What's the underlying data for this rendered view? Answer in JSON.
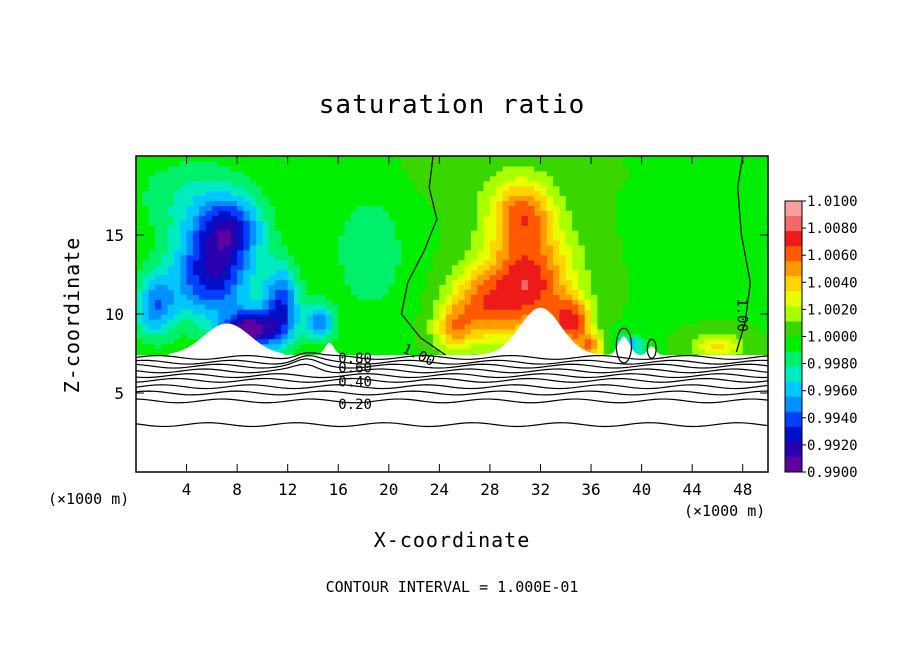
{
  "chart_data": {
    "type": "heatmap",
    "title": "saturation ratio",
    "xlabel": "X-coordinate",
    "ylabel": "Z-coordinate",
    "x_unit_label_left": "(×1000 m)",
    "x_unit_label_right": "(×1000 m)",
    "footer": "CONTOUR INTERVAL = 1.000E-01",
    "xlim": [
      0,
      50
    ],
    "ylim": [
      0,
      20
    ],
    "x_ticks": [
      "4",
      "8",
      "12",
      "16",
      "20",
      "24",
      "28",
      "32",
      "36",
      "40",
      "44",
      "48"
    ],
    "x_tick_values": [
      4,
      8,
      12,
      16,
      20,
      24,
      28,
      32,
      36,
      40,
      44,
      48
    ],
    "y_ticks": [
      "5",
      "10",
      "15"
    ],
    "y_tick_values": [
      5,
      10,
      15
    ],
    "colorbar": {
      "min": 0.99,
      "max": 1.01,
      "labels": [
        "1.0100",
        "1.0080",
        "1.0060",
        "1.0040",
        "1.0020",
        "1.0000",
        "0.9980",
        "0.9960",
        "0.9940",
        "0.9920",
        "0.9900"
      ],
      "colors": [
        "#f7a0a0",
        "#f06a6a",
        "#ee1a1a",
        "#ff5a00",
        "#ff9a00",
        "#ffd400",
        "#e8ff00",
        "#a8ff00",
        "#3ad600",
        "#00ee00",
        "#00f06a",
        "#00ecc0",
        "#00c8ff",
        "#0090ff",
        "#0040ff",
        "#0010c8",
        "#2800b0",
        "#6000a0"
      ]
    },
    "contour_labels": [
      "0.80",
      "0.60",
      "0.40",
      "0.20",
      "1.00",
      "1.00"
    ],
    "blobs": [
      {
        "x": 6,
        "z": 12.6,
        "sx": 3.2,
        "sz": 3.0,
        "v": 0.9925
      },
      {
        "x": 7.5,
        "z": 15.5,
        "sx": 2.5,
        "sz": 2.0,
        "v": 0.9945
      },
      {
        "x": 1.5,
        "z": 10.5,
        "sx": 1.6,
        "sz": 2.0,
        "v": 0.995
      },
      {
        "x": 11.5,
        "z": 10.5,
        "sx": 1.4,
        "sz": 2.5,
        "v": 0.9935
      },
      {
        "x": 9,
        "z": 9,
        "sx": 2,
        "sz": 1.2,
        "v": 0.9905
      },
      {
        "x": 14.5,
        "z": 9.5,
        "sx": 1.2,
        "sz": 1.2,
        "v": 0.995
      },
      {
        "x": 18.5,
        "z": 14,
        "sx": 3,
        "sz": 4,
        "v": 0.998
      },
      {
        "x": 4.5,
        "z": 17.5,
        "sx": 4.5,
        "sz": 2.5,
        "v": 0.9978
      },
      {
        "x": 31,
        "z": 12,
        "sx": 3.5,
        "sz": 3.5,
        "v": 1.0075
      },
      {
        "x": 30.5,
        "z": 16.5,
        "sx": 2.5,
        "sz": 2,
        "v": 1.005
      },
      {
        "x": 27,
        "z": 10.5,
        "sx": 2.5,
        "sz": 2.2,
        "v": 1.0045
      },
      {
        "x": 34.5,
        "z": 9.5,
        "sx": 1.5,
        "sz": 1.5,
        "v": 1.006
      },
      {
        "x": 25,
        "z": 9,
        "sx": 1.5,
        "sz": 1.5,
        "v": 1.0035
      },
      {
        "x": 28,
        "z": 19,
        "sx": 7,
        "sz": 2,
        "v": 1.0005
      },
      {
        "x": 39,
        "z": 8,
        "sx": 1.2,
        "sz": 0.8,
        "v": 0.996
      },
      {
        "x": 46,
        "z": 8,
        "sx": 2,
        "sz": 0.8,
        "v": 1.0035
      },
      {
        "x": 36,
        "z": 8,
        "sx": 1,
        "sz": 0.8,
        "v": 1.005
      }
    ]
  }
}
